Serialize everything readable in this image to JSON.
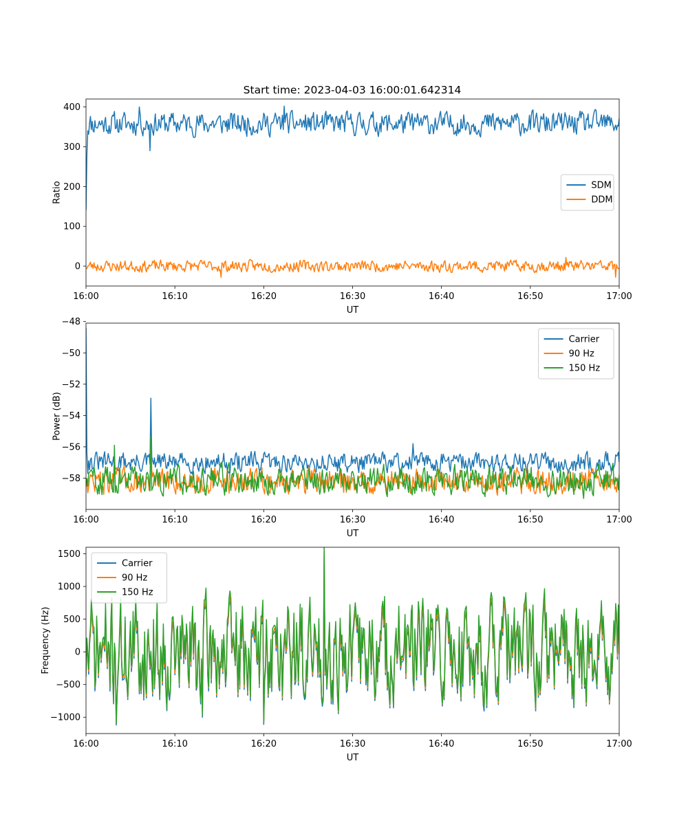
{
  "figure_title": "Start time: 2023-04-03 16:00:01.642314",
  "chart_data": [
    {
      "type": "line",
      "title": "Start time: 2023-04-03 16:00:01.642314",
      "xlabel": "UT",
      "ylabel": "Ratio",
      "xlim": [
        "16:00",
        "17:00"
      ],
      "xticks": [
        "16:00",
        "16:10",
        "16:20",
        "16:30",
        "16:40",
        "16:50",
        "17:00"
      ],
      "ylim": [
        -50,
        420
      ],
      "yticks": [
        0,
        100,
        200,
        300,
        400
      ],
      "ytick_labels": [
        "0",
        "100",
        "200",
        "300",
        "400"
      ],
      "grid": false,
      "legend_position": "center-right",
      "sample_interval_seconds": 6,
      "series": [
        {
          "name": "SDM",
          "color": "#1f77b4",
          "shape": "noise",
          "start": 140,
          "level": 358,
          "amplitude": 16,
          "seed": 11,
          "features": [
            {
              "minute": 0.05,
              "value": 280
            },
            {
              "minute": 0.2,
              "value": 340
            },
            {
              "minute": 7.2,
              "value": 290
            },
            {
              "minute": 6.0,
              "value": 400
            },
            {
              "minute": 22.3,
              "value": 402
            }
          ]
        },
        {
          "name": "DDM",
          "color": "#ff7f0e",
          "shape": "noise",
          "level": 0,
          "amplitude": 8,
          "seed": 23,
          "features": [
            {
              "minute": 15.2,
              "value": -28
            },
            {
              "minute": 59.6,
              "value": -28
            },
            {
              "minute": 54.0,
              "value": 22
            }
          ]
        }
      ]
    },
    {
      "type": "line",
      "xlabel": "UT",
      "ylabel": "Power (dB)",
      "xlim": [
        "16:00",
        "17:00"
      ],
      "xticks": [
        "16:00",
        "16:10",
        "16:20",
        "16:30",
        "16:40",
        "16:50",
        "17:00"
      ],
      "ylim": [
        -60.0,
        -48.1
      ],
      "yticks": [
        -58,
        -56,
        -54,
        -52,
        -50,
        -48
      ],
      "ytick_labels": [
        "−58",
        "−56",
        "−54",
        "−52",
        "−50",
        "−48"
      ],
      "grid": false,
      "legend_position": "top-right",
      "sample_interval_seconds": 6,
      "series": [
        {
          "name": "Carrier",
          "color": "#1f77b4",
          "shape": "noise",
          "start": -48.4,
          "level": -57.0,
          "amplitude": 0.35,
          "seed": 31,
          "features": [
            {
              "minute": 0.15,
              "value": -56.4
            },
            {
              "minute": 7.3,
              "value": -52.9
            },
            {
              "minute": 36.8,
              "value": -55.8
            }
          ]
        },
        {
          "name": "90 Hz",
          "color": "#ff7f0e",
          "shape": "noise",
          "level": -58.2,
          "amplitude": 0.45,
          "seed": 47,
          "features": [
            {
              "minute": 7.3,
              "value": -55.6
            },
            {
              "minute": 3.2,
              "value": -56.8
            }
          ]
        },
        {
          "name": "150 Hz",
          "color": "#2ca02c",
          "shape": "noise",
          "level": -58.1,
          "amplitude": 0.5,
          "seed": 59,
          "features": [
            {
              "minute": 7.3,
              "value": -55.3
            },
            {
              "minute": 3.2,
              "value": -55.9
            },
            {
              "minute": 56.0,
              "value": -59.3
            }
          ]
        }
      ]
    },
    {
      "type": "line",
      "xlabel": "UT",
      "ylabel": "Frequency (Hz)",
      "xlim": [
        "16:00",
        "17:00"
      ],
      "xticks": [
        "16:00",
        "16:10",
        "16:20",
        "16:30",
        "16:40",
        "16:50",
        "17:00"
      ],
      "ylim": [
        -1250,
        1600
      ],
      "yticks": [
        -1000,
        -500,
        0,
        500,
        1000,
        1500
      ],
      "ytick_labels": [
        "−1000",
        "−500",
        "0",
        "500",
        "1000",
        "1500"
      ],
      "grid": false,
      "legend_position": "top-left",
      "sample_interval_seconds": 6,
      "series": [
        {
          "name": "Carrier",
          "color": "#1f77b4",
          "shape": "noise",
          "level": -60,
          "amplitude": 420,
          "seed": 71,
          "features": [
            {
              "minute": 3.4,
              "value": -1120
            },
            {
              "minute": 20.0,
              "value": -1110
            },
            {
              "minute": 26.8,
              "value": 1480
            },
            {
              "minute": 13.1,
              "value": -1000
            }
          ]
        },
        {
          "name": "90 Hz",
          "color": "#ff7f0e",
          "shape": "offset",
          "of": 0,
          "offset": 40,
          "scale": 1.0
        },
        {
          "name": "150 Hz",
          "color": "#2ca02c",
          "shape": "offset",
          "of": 0,
          "offset": 90,
          "scale": 1.05
        }
      ]
    }
  ]
}
